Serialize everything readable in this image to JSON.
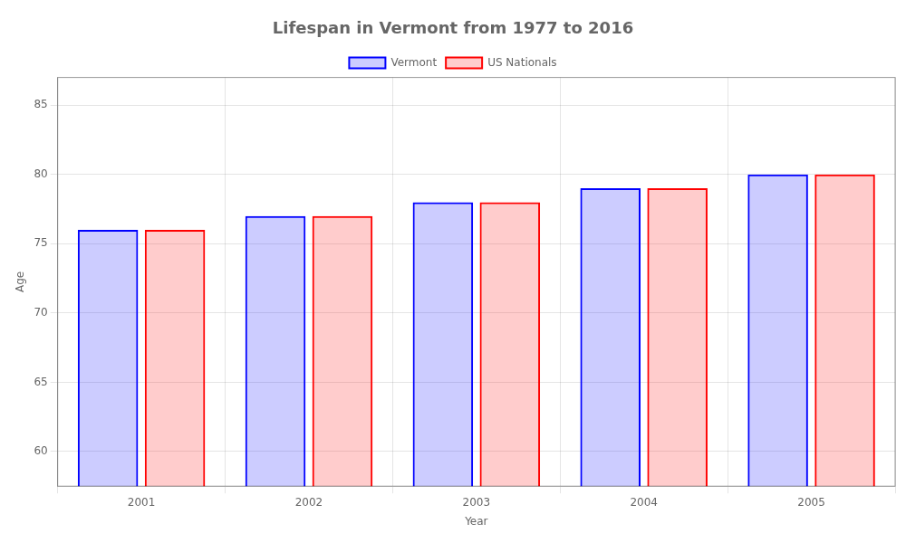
{
  "chart_data": {
    "type": "bar",
    "title": "Lifespan in Vermont from 1977 to 2016",
    "x_label": "Year",
    "y_label": "Age",
    "categories": [
      "2001",
      "2002",
      "2003",
      "2004",
      "2005"
    ],
    "series": [
      {
        "name": "Vermont",
        "color": "#0000ff",
        "values": [
          76,
          77,
          78,
          79,
          80
        ]
      },
      {
        "name": "US Nationals",
        "color": "#ff0000",
        "values": [
          76,
          77,
          78,
          79,
          80
        ]
      }
    ],
    "ylim": [
      57.5,
      87
    ],
    "yticks": [
      60,
      65,
      70,
      75,
      80,
      85
    ],
    "grid": true,
    "legend": "top"
  }
}
